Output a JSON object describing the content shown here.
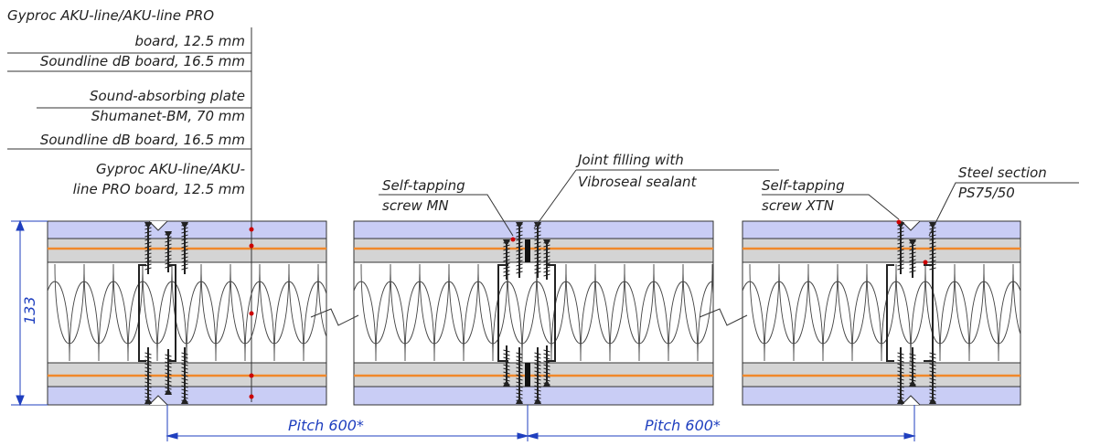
{
  "colors": {
    "board": "#c9cdf5",
    "orange": "#f0882a",
    "line": "#333333",
    "dimension": "#1f3fbf",
    "marker": "#cc0000"
  },
  "layer_labels": {
    "l1": "Gyproc AKU-line/AKU-line PRO",
    "l2": "board, 12.5 mm",
    "l3": "Soundline dB board, 16.5 mm",
    "l4": "Sound-absorbing plate",
    "l5": "Shumanet-BM, 70 mm",
    "l6": "Soundline dB board, 16.5 mm",
    "l7": "Gyproc AKU-line/AKU-",
    "l8": "line PRO board, 12.5 mm"
  },
  "callouts": {
    "screw_mn_1": "Self-tapping",
    "screw_mn_2": "screw MN",
    "joint_1": "Joint filling with",
    "joint_2": "Vibroseal sealant",
    "screw_xtn_1": "Self-tapping",
    "screw_xtn_2": "screw XTN",
    "steel_1": "Steel section",
    "steel_2": "PS75/50"
  },
  "dimensions": {
    "thickness": "133",
    "pitch_left": "Pitch 600*",
    "pitch_right": "Pitch 600*"
  }
}
